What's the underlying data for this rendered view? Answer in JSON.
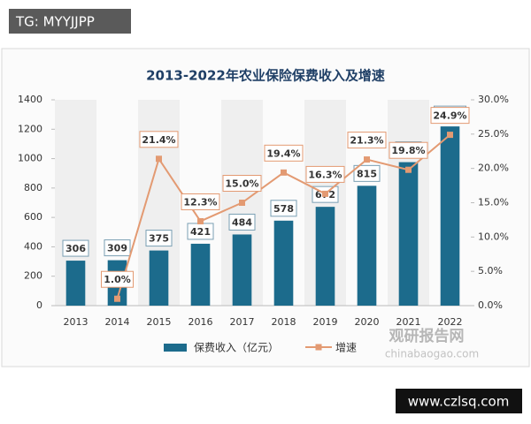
{
  "overlay": {
    "top_tag": "TG: MYYJJPP",
    "site": "www.czlsq.com",
    "watermark_name": "观研报告网",
    "watermark_url": "chinabaogao.com"
  },
  "chart_data": {
    "type": "combo",
    "title": "2013-2022年农业保险保费收入及增速",
    "categories": [
      "2013",
      "2014",
      "2015",
      "2016",
      "2017",
      "2018",
      "2019",
      "2020",
      "2021",
      "2022"
    ],
    "series": [
      {
        "name": "保费收入（亿元）",
        "type": "bar",
        "color": "#1c6b8c",
        "values": [
          306,
          309,
          375,
          421,
          484,
          578,
          672,
          815,
          976,
          1219
        ]
      },
      {
        "name": "增速",
        "type": "line",
        "axis": "y2",
        "color": "#e39a72",
        "values": [
          null,
          1.0,
          21.4,
          12.3,
          15.0,
          19.4,
          16.3,
          21.3,
          19.8,
          24.9
        ],
        "value_labels": [
          null,
          "1.0%",
          "21.4%",
          "12.3%",
          "15.0%",
          "19.4%",
          "16.3%",
          "21.3%",
          "19.8%",
          "24.9%"
        ]
      }
    ],
    "ylim": [
      0,
      1400
    ],
    "yticks": [
      0,
      200,
      400,
      600,
      800,
      1000,
      1200,
      1400
    ],
    "y2lim": [
      0,
      30
    ],
    "y2ticks": [
      {
        "value": 0,
        "label": "0.0%"
      },
      {
        "value": 5,
        "label": "5.0%"
      },
      {
        "value": 10,
        "label": "10.0%"
      },
      {
        "value": 15,
        "label": "15.0%"
      },
      {
        "value": 20,
        "label": "20.0%"
      },
      {
        "value": 25,
        "label": "25.0%"
      },
      {
        "value": 30,
        "label": "30.0%"
      }
    ]
  }
}
